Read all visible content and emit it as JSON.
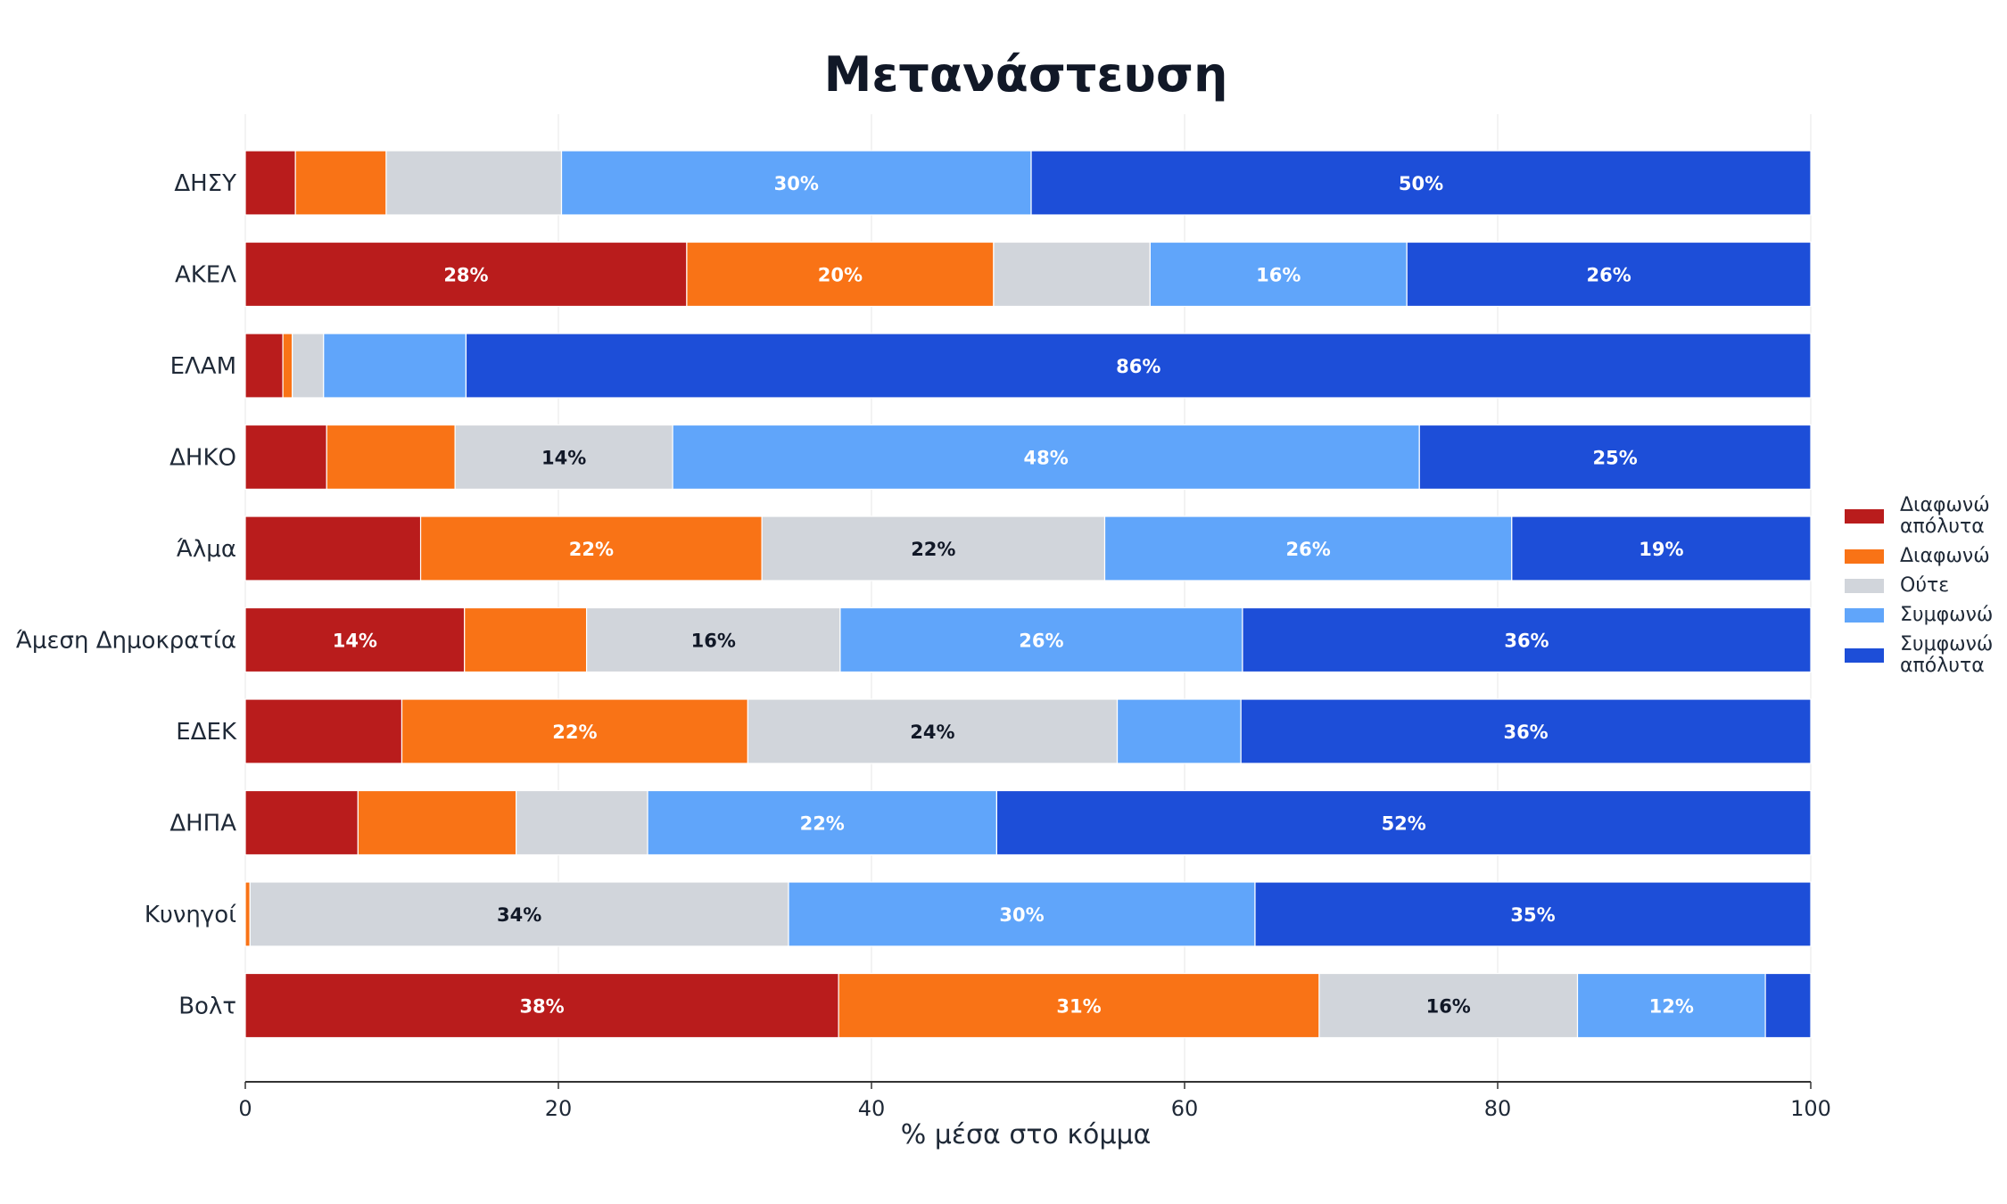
{
  "chart_data": {
    "type": "bar",
    "orientation": "horizontal",
    "stacked": true,
    "title": "Μετανάστευση",
    "xlabel": "% μέσα στο κόμμα",
    "ylabel": "",
    "xlim": [
      0,
      100
    ],
    "x_ticks": [
      "0",
      "20",
      "40",
      "60",
      "80",
      "100"
    ],
    "grid": "vertical",
    "legend_position": "right",
    "categories": [
      "ΔΗΣΥ",
      "ΑΚΕΛ",
      "ΕΛΑΜ",
      "ΔΗΚΟ",
      "Άλμα",
      "Άμεση Δημοκρατία",
      "ΕΔΕΚ",
      "ΔΗΠΑ",
      "Κυνηγοί",
      "Βολτ"
    ],
    "series": [
      {
        "name": "Διαφωνώ απόλυτα",
        "color": "#b91c1c",
        "values": [
          3.2,
          28.2,
          2.4,
          5.2,
          11.2,
          14.0,
          10.0,
          7.2,
          0.0,
          37.9
        ]
      },
      {
        "name": "Διαφωνώ",
        "color": "#f97316",
        "values": [
          5.8,
          19.6,
          0.6,
          8.2,
          21.8,
          7.8,
          22.1,
          10.1,
          0.3,
          30.7
        ]
      },
      {
        "name": "Ούτε",
        "color": "#d1d5db",
        "values": [
          11.2,
          10.0,
          2.0,
          13.9,
          21.9,
          16.2,
          23.6,
          8.4,
          34.4,
          16.5
        ]
      },
      {
        "name": "Συμφωνώ",
        "color": "#60a5fa",
        "values": [
          30.0,
          16.4,
          9.1,
          47.7,
          26.0,
          25.7,
          7.9,
          22.3,
          29.8,
          12.0
        ]
      },
      {
        "name": "Συμφωνώ απόλυτα",
        "color": "#1d4ed8",
        "values": [
          49.8,
          25.8,
          85.9,
          25.0,
          19.1,
          36.3,
          36.4,
          52.0,
          35.5,
          2.9
        ]
      }
    ],
    "data_labels": [
      [
        "",
        "28%",
        "",
        "",
        "",
        "14%",
        "",
        "",
        "",
        "38%"
      ],
      [
        "",
        "20%",
        "",
        "",
        "22%",
        "",
        "22%",
        "",
        "",
        "31%"
      ],
      [
        "",
        "",
        "",
        "14%",
        "22%",
        "16%",
        "24%",
        "",
        "34%",
        "16%"
      ],
      [
        "30%",
        "16%",
        "",
        "48%",
        "26%",
        "26%",
        "",
        "22%",
        "30%",
        "12%"
      ],
      [
        "50%",
        "26%",
        "86%",
        "25%",
        "19%",
        "36%",
        "36%",
        "52%",
        "35%",
        ""
      ]
    ]
  }
}
